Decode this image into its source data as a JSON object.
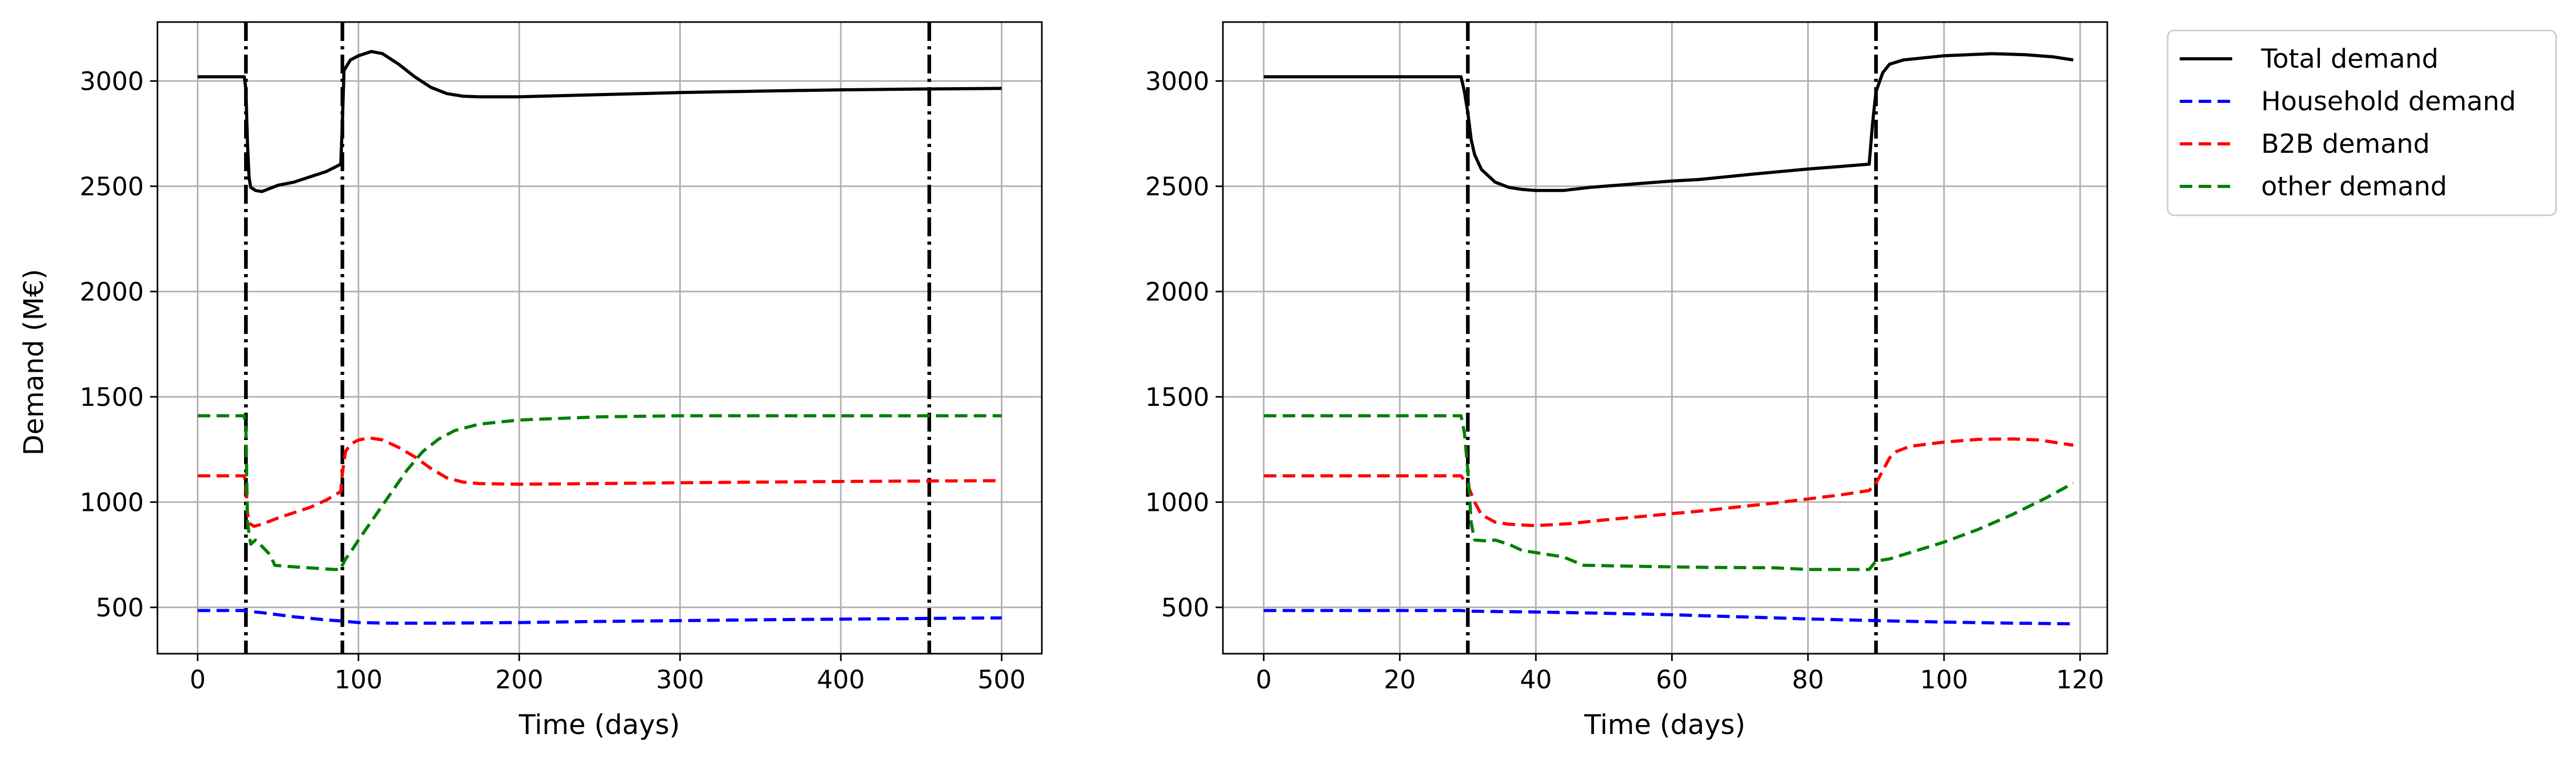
{
  "chart_data": [
    {
      "type": "line",
      "id": "left",
      "title": "",
      "xlabel": "Time (days)",
      "ylabel": "Demand (M€)",
      "xlim": [
        -25,
        525
      ],
      "ylim": [
        280,
        3280
      ],
      "xticks": [
        0,
        100,
        200,
        300,
        400,
        500
      ],
      "yticks": [
        500,
        1000,
        1500,
        2000,
        2500,
        3000
      ],
      "grid": true,
      "vlines": [
        30,
        90,
        455
      ],
      "series": [
        {
          "name": "Total demand",
          "color": "#000000",
          "dash": "solid",
          "points": [
            [
              0,
              3020
            ],
            [
              29,
              3020
            ],
            [
              30,
              2960
            ],
            [
              31,
              2700
            ],
            [
              32,
              2540
            ],
            [
              33,
              2495
            ],
            [
              36,
              2480
            ],
            [
              40,
              2475
            ],
            [
              45,
              2490
            ],
            [
              50,
              2505
            ],
            [
              60,
              2520
            ],
            [
              70,
              2545
            ],
            [
              80,
              2570
            ],
            [
              89,
              2605
            ],
            [
              90,
              2800
            ],
            [
              91,
              3050
            ],
            [
              95,
              3100
            ],
            [
              100,
              3120
            ],
            [
              108,
              3140
            ],
            [
              115,
              3130
            ],
            [
              125,
              3080
            ],
            [
              135,
              3020
            ],
            [
              145,
              2970
            ],
            [
              155,
              2940
            ],
            [
              165,
              2928
            ],
            [
              175,
              2925
            ],
            [
              200,
              2925
            ],
            [
              250,
              2935
            ],
            [
              300,
              2945
            ],
            [
              350,
              2952
            ],
            [
              400,
              2958
            ],
            [
              450,
              2962
            ],
            [
              500,
              2965
            ]
          ]
        },
        {
          "name": "Household demand",
          "color": "#0000ff",
          "dash": "dashed",
          "points": [
            [
              0,
              485
            ],
            [
              29,
              485
            ],
            [
              30,
              482
            ],
            [
              40,
              475
            ],
            [
              50,
              465
            ],
            [
              60,
              455
            ],
            [
              70,
              448
            ],
            [
              80,
              440
            ],
            [
              90,
              435
            ],
            [
              100,
              428
            ],
            [
              120,
              425
            ],
            [
              150,
              425
            ],
            [
              200,
              428
            ],
            [
              250,
              433
            ],
            [
              300,
              437
            ],
            [
              350,
              441
            ],
            [
              400,
              444
            ],
            [
              450,
              447
            ],
            [
              500,
              450
            ]
          ]
        },
        {
          "name": "B2B demand",
          "color": "#ff0000",
          "dash": "dashed",
          "points": [
            [
              0,
              1125
            ],
            [
              29,
              1125
            ],
            [
              30,
              1080
            ],
            [
              31,
              950
            ],
            [
              32,
              900
            ],
            [
              35,
              885
            ],
            [
              40,
              895
            ],
            [
              45,
              910
            ],
            [
              50,
              925
            ],
            [
              60,
              950
            ],
            [
              70,
              975
            ],
            [
              80,
              1010
            ],
            [
              89,
              1050
            ],
            [
              90,
              1140
            ],
            [
              92,
              1240
            ],
            [
              95,
              1275
            ],
            [
              100,
              1295
            ],
            [
              107,
              1305
            ],
            [
              115,
              1295
            ],
            [
              125,
              1260
            ],
            [
              135,
              1215
            ],
            [
              145,
              1160
            ],
            [
              155,
              1115
            ],
            [
              165,
              1095
            ],
            [
              175,
              1088
            ],
            [
              200,
              1085
            ],
            [
              250,
              1088
            ],
            [
              300,
              1092
            ],
            [
              350,
              1095
            ],
            [
              400,
              1098
            ],
            [
              450,
              1100
            ],
            [
              500,
              1102
            ]
          ]
        },
        {
          "name": "other demand",
          "color": "#008000",
          "dash": "dashed",
          "points": [
            [
              0,
              1410
            ],
            [
              29,
              1410
            ],
            [
              30,
              1350
            ],
            [
              31,
              900
            ],
            [
              33,
              800
            ],
            [
              36,
              820
            ],
            [
              40,
              790
            ],
            [
              45,
              750
            ],
            [
              48,
              700
            ],
            [
              55,
              695
            ],
            [
              65,
              690
            ],
            [
              75,
              685
            ],
            [
              85,
              680
            ],
            [
              89,
              680
            ],
            [
              90,
              700
            ],
            [
              92,
              730
            ],
            [
              95,
              760
            ],
            [
              100,
              820
            ],
            [
              110,
              930
            ],
            [
              120,
              1040
            ],
            [
              130,
              1150
            ],
            [
              140,
              1240
            ],
            [
              150,
              1300
            ],
            [
              160,
              1340
            ],
            [
              175,
              1370
            ],
            [
              200,
              1390
            ],
            [
              250,
              1405
            ],
            [
              300,
              1410
            ],
            [
              400,
              1410
            ],
            [
              500,
              1410
            ]
          ]
        }
      ]
    },
    {
      "type": "line",
      "id": "right",
      "title": "",
      "xlabel": "Time (days)",
      "ylabel": "",
      "xlim": [
        -6,
        124
      ],
      "ylim": [
        280,
        3280
      ],
      "xticks": [
        0,
        20,
        40,
        60,
        80,
        100,
        120
      ],
      "yticks": [
        500,
        1000,
        1500,
        2000,
        2500,
        3000
      ],
      "grid": true,
      "vlines": [
        30,
        90
      ],
      "series": [
        {
          "name": "Total demand",
          "color": "#000000",
          "dash": "solid",
          "points": [
            [
              0,
              3020
            ],
            [
              29,
              3020
            ],
            [
              29.5,
              2950
            ],
            [
              30,
              2850
            ],
            [
              30.5,
              2720
            ],
            [
              31,
              2650
            ],
            [
              32,
              2580
            ],
            [
              34,
              2520
            ],
            [
              36,
              2495
            ],
            [
              38,
              2485
            ],
            [
              40,
              2480
            ],
            [
              44,
              2480
            ],
            [
              48,
              2495
            ],
            [
              52,
              2505
            ],
            [
              56,
              2515
            ],
            [
              60,
              2525
            ],
            [
              64,
              2532
            ],
            [
              68,
              2545
            ],
            [
              72,
              2558
            ],
            [
              76,
              2570
            ],
            [
              80,
              2582
            ],
            [
              84,
              2592
            ],
            [
              89,
              2605
            ],
            [
              89.5,
              2800
            ],
            [
              90,
              2950
            ],
            [
              91,
              3040
            ],
            [
              92,
              3080
            ],
            [
              94,
              3100
            ],
            [
              100,
              3120
            ],
            [
              107,
              3130
            ],
            [
              112,
              3125
            ],
            [
              116,
              3115
            ],
            [
              119,
              3100
            ]
          ]
        },
        {
          "name": "Household demand",
          "color": "#0000ff",
          "dash": "dashed",
          "points": [
            [
              0,
              485
            ],
            [
              29,
              485
            ],
            [
              30,
              482
            ],
            [
              40,
              478
            ],
            [
              50,
              472
            ],
            [
              60,
              465
            ],
            [
              70,
              455
            ],
            [
              80,
              445
            ],
            [
              90,
              437
            ],
            [
              100,
              430
            ],
            [
              110,
              425
            ],
            [
              119,
              422
            ]
          ]
        },
        {
          "name": "B2B demand",
          "color": "#ff0000",
          "dash": "dashed",
          "points": [
            [
              0,
              1125
            ],
            [
              29,
              1125
            ],
            [
              30,
              1080
            ],
            [
              31,
              1000
            ],
            [
              32,
              940
            ],
            [
              34,
              905
            ],
            [
              36,
              895
            ],
            [
              40,
              888
            ],
            [
              45,
              898
            ],
            [
              50,
              915
            ],
            [
              55,
              930
            ],
            [
              60,
              945
            ],
            [
              65,
              960
            ],
            [
              70,
              978
            ],
            [
              75,
              995
            ],
            [
              80,
              1015
            ],
            [
              85,
              1035
            ],
            [
              89,
              1055
            ],
            [
              90,
              1090
            ],
            [
              91,
              1150
            ],
            [
              92,
              1210
            ],
            [
              93,
              1240
            ],
            [
              95,
              1265
            ],
            [
              100,
              1285
            ],
            [
              105,
              1298
            ],
            [
              110,
              1300
            ],
            [
              114,
              1295
            ],
            [
              119,
              1270
            ]
          ]
        },
        {
          "name": "other demand",
          "color": "#008000",
          "dash": "dashed",
          "points": [
            [
              0,
              1410
            ],
            [
              29,
              1410
            ],
            [
              29.5,
              1330
            ],
            [
              30,
              1150
            ],
            [
              30.5,
              900
            ],
            [
              31,
              820
            ],
            [
              33,
              815
            ],
            [
              34,
              820
            ],
            [
              36,
              800
            ],
            [
              38,
              770
            ],
            [
              41,
              755
            ],
            [
              44,
              740
            ],
            [
              47,
              700
            ],
            [
              55,
              695
            ],
            [
              65,
              690
            ],
            [
              75,
              688
            ],
            [
              80,
              680
            ],
            [
              89,
              680
            ],
            [
              90,
              720
            ],
            [
              92,
              730
            ],
            [
              95,
              760
            ],
            [
              100,
              810
            ],
            [
              105,
              870
            ],
            [
              110,
              940
            ],
            [
              115,
              1020
            ],
            [
              119,
              1090
            ]
          ]
        }
      ]
    }
  ],
  "legend": {
    "placement": "outside-right-top",
    "entries": [
      {
        "label": "Total demand",
        "color": "#000000",
        "dash": "solid"
      },
      {
        "label": "Household demand",
        "color": "#0000ff",
        "dash": "dashed"
      },
      {
        "label": "B2B demand",
        "color": "#ff0000",
        "dash": "dashed"
      },
      {
        "label": "other demand",
        "color": "#008000",
        "dash": "dashed"
      }
    ]
  }
}
